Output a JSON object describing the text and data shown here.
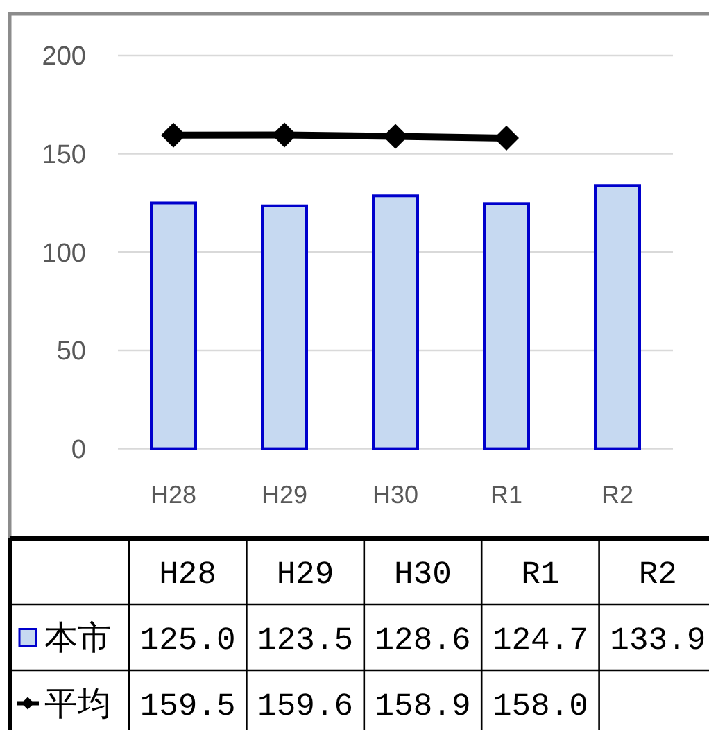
{
  "chart_data": {
    "type": "bar",
    "categories": [
      "H28",
      "H29",
      "H30",
      "R1",
      "R2"
    ],
    "series": [
      {
        "name": "本市",
        "color": "#c6d9f1",
        "values": [
          125.0,
          123.5,
          128.6,
          124.7,
          133.9
        ],
        "value_labels": [
          "125.0",
          "123.5",
          "128.6",
          "124.7",
          "133.9"
        ]
      },
      {
        "name": "平均",
        "type": "line",
        "color": "#000000",
        "marker": "diamond",
        "values": [
          159.5,
          159.6,
          158.9,
          158.0,
          null
        ],
        "value_labels": [
          "159.5",
          "159.6",
          "158.9",
          "158.0",
          null
        ]
      }
    ],
    "ylim": [
      0,
      200
    ],
    "yticks": [
      0,
      50,
      100,
      150,
      200
    ],
    "grid": "y",
    "legend": "bottom"
  }
}
